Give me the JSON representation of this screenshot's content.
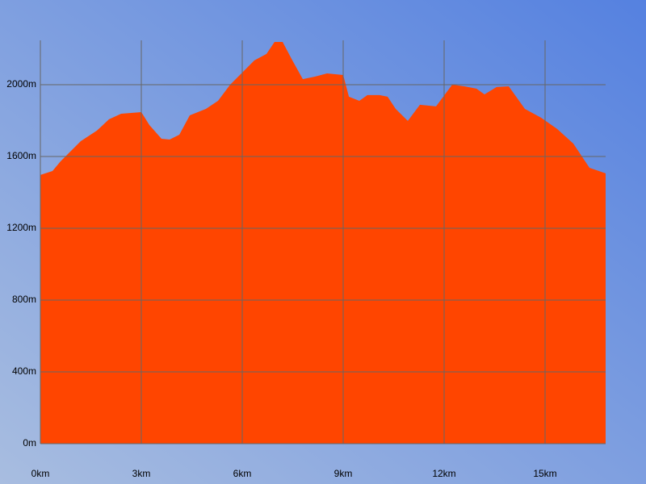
{
  "chart_data": {
    "type": "area",
    "color": "#ff4500",
    "grid": true,
    "x": [
      0,
      0.36,
      0.6,
      1.2,
      1.68,
      2.04,
      2.4,
      3.0,
      3.24,
      3.6,
      3.84,
      4.13,
      4.44,
      4.92,
      5.28,
      5.64,
      6.0,
      6.36,
      6.72,
      6.96,
      7.2,
      7.49,
      7.8,
      8.16,
      8.52,
      9.0,
      9.17,
      9.48,
      9.72,
      10.08,
      10.32,
      10.56,
      10.92,
      11.28,
      11.76,
      12.24,
      12.6,
      12.96,
      13.2,
      13.56,
      13.92,
      14.4,
      14.88,
      15.36,
      15.84,
      16.32,
      16.8
    ],
    "values": [
      1497,
      1519,
      1573,
      1685,
      1744,
      1807,
      1838,
      1847,
      1775,
      1699,
      1694,
      1721,
      1829,
      1865,
      1910,
      2000,
      2067,
      2135,
      2171,
      2238,
      2238,
      2135,
      2031,
      2045,
      2063,
      2054,
      1933,
      1910,
      1942,
      1942,
      1933,
      1865,
      1798,
      1888,
      1879,
      2000,
      1991,
      1978,
      1946,
      1987,
      1991,
      1865,
      1816,
      1753,
      1672,
      1537,
      1506
    ],
    "xlim": [
      0,
      16.8
    ],
    "ylim": [
      0,
      2247
    ],
    "xticks": [
      {
        "value": 0,
        "label": "0km"
      },
      {
        "value": 3,
        "label": "3km"
      },
      {
        "value": 6,
        "label": "6km"
      },
      {
        "value": 9,
        "label": "9km"
      },
      {
        "value": 12,
        "label": "12km"
      },
      {
        "value": 15,
        "label": "15km"
      }
    ],
    "yticks": [
      {
        "value": 0,
        "label": "0m"
      },
      {
        "value": 400,
        "label": "400m"
      },
      {
        "value": 800,
        "label": "800m"
      },
      {
        "value": 1200,
        "label": "1200m"
      },
      {
        "value": 1600,
        "label": "1600m"
      },
      {
        "value": 2000,
        "label": "2000m"
      }
    ]
  }
}
